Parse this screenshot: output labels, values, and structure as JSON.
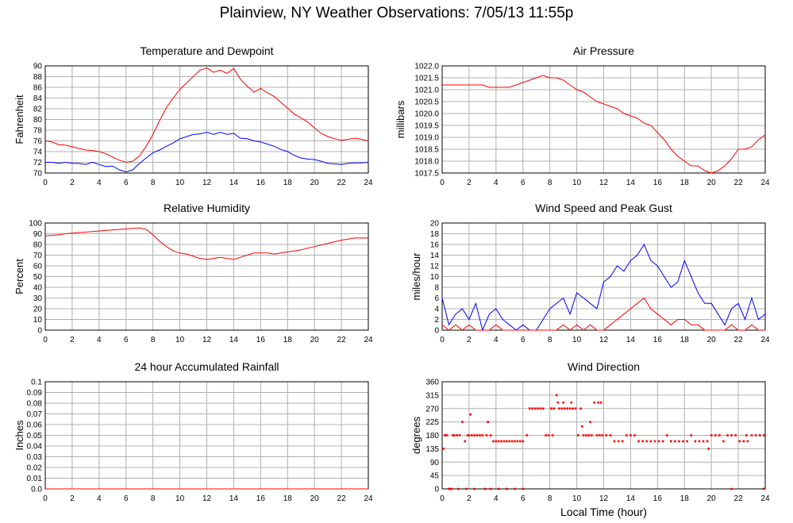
{
  "page": {
    "title": "Plainview, NY Weather Observations: 7/05/13 11:55p"
  },
  "colors": {
    "red": "#ff0000",
    "blue": "#0000ff",
    "grid": "#b0b0b0"
  },
  "chart_data": [
    {
      "id": "temp",
      "type": "line",
      "title": "Temperature and Dewpoint",
      "xlabel": "",
      "ylabel": "Fahrenheit",
      "xlim": [
        0,
        24
      ],
      "ylim": [
        70,
        90
      ],
      "x_ticks": [
        "0",
        "2",
        "4",
        "6",
        "8",
        "10",
        "12",
        "14",
        "16",
        "18",
        "20",
        "22",
        "24"
      ],
      "y_ticks": [
        "70",
        "72",
        "74",
        "76",
        "78",
        "80",
        "82",
        "84",
        "86",
        "88",
        "90"
      ],
      "series": [
        {
          "color": "#ff0000",
          "x": [
            0,
            0.5,
            1,
            1.5,
            2,
            2.5,
            3,
            3.5,
            4,
            4.5,
            5,
            5.5,
            6,
            6.5,
            7,
            7.5,
            8,
            8.5,
            9,
            9.5,
            10,
            10.5,
            11,
            11.5,
            12,
            12.5,
            13,
            13.5,
            14,
            14.5,
            15,
            15.5,
            16,
            16.5,
            17,
            17.5,
            18,
            18.5,
            19,
            19.5,
            20,
            20.5,
            21,
            21.5,
            22,
            22.5,
            23,
            23.5,
            24
          ],
          "y": [
            76,
            75.8,
            75.3,
            75.2,
            74.9,
            74.6,
            74.3,
            74.2,
            74,
            73.6,
            73,
            72.4,
            72,
            72.2,
            73.2,
            75,
            77.2,
            79.8,
            82.2,
            84,
            85.6,
            86.8,
            88,
            89.2,
            89.6,
            88.8,
            89.2,
            88.6,
            89.5,
            87.5,
            86.2,
            85.1,
            85.8,
            85,
            84.3,
            83.2,
            82.1,
            81,
            80.3,
            79.5,
            78.4,
            77.4,
            76.8,
            76.4,
            76.1,
            76.3,
            76.5,
            76.3,
            76
          ]
        },
        {
          "color": "#0000ff",
          "x": [
            0,
            0.5,
            1,
            1.5,
            2,
            2.5,
            3,
            3.5,
            4,
            4.5,
            5,
            5.5,
            6,
            6.5,
            7,
            7.5,
            8,
            8.5,
            9,
            9.5,
            10,
            10.5,
            11,
            11.5,
            12,
            12.5,
            13,
            13.5,
            14,
            14.5,
            15,
            15.5,
            16,
            16.5,
            17,
            17.5,
            18,
            18.5,
            19,
            19.5,
            20,
            20.5,
            21,
            21.5,
            22,
            22.5,
            23,
            23.5,
            24
          ],
          "y": [
            72,
            72,
            71.8,
            72,
            71.8,
            71.8,
            71.6,
            72,
            71.6,
            71.2,
            71.3,
            70.6,
            70.2,
            70.6,
            71.8,
            72.8,
            73.8,
            74.3,
            75,
            75.6,
            76.4,
            76.8,
            77.2,
            77.3,
            77.6,
            77.2,
            77.6,
            77.2,
            77.4,
            76.5,
            76.4,
            76,
            75.8,
            75.4,
            75,
            74.4,
            74,
            73.3,
            72.8,
            72.6,
            72.5,
            72.2,
            71.8,
            71.7,
            71.6,
            71.8,
            71.9,
            71.9,
            72
          ]
        }
      ]
    },
    {
      "id": "pressure",
      "type": "line",
      "title": "Air Pressure",
      "xlabel": "",
      "ylabel": "millibars",
      "xlim": [
        0,
        24
      ],
      "ylim": [
        1017.5,
        1022.0
      ],
      "x_ticks": [
        "0",
        "2",
        "4",
        "6",
        "8",
        "10",
        "12",
        "14",
        "16",
        "18",
        "20",
        "22",
        "24"
      ],
      "y_ticks": [
        "1017.5",
        "1018.0",
        "1018.5",
        "1019.0",
        "1019.5",
        "1020.0",
        "1020.5",
        "1021.0",
        "1021.5",
        "1022.0"
      ],
      "series": [
        {
          "color": "#ff0000",
          "x": [
            0,
            0.5,
            1,
            1.5,
            2,
            2.5,
            3,
            3.5,
            4,
            4.5,
            5,
            5.5,
            6,
            6.5,
            7,
            7.5,
            8,
            8.5,
            9,
            9.5,
            10,
            10.5,
            11,
            11.5,
            12,
            12.5,
            13,
            13.5,
            14,
            14.5,
            15,
            15.5,
            16,
            16.5,
            17,
            17.5,
            18,
            18.5,
            19,
            19.5,
            20,
            20.5,
            21,
            21.5,
            22,
            22.5,
            23,
            23.5,
            24
          ],
          "y": [
            1021.2,
            1021.2,
            1021.2,
            1021.2,
            1021.2,
            1021.2,
            1021.2,
            1021.1,
            1021.1,
            1021.1,
            1021.1,
            1021.2,
            1021.3,
            1021.4,
            1021.5,
            1021.6,
            1021.5,
            1021.5,
            1021.4,
            1021.2,
            1021.0,
            1020.9,
            1020.7,
            1020.5,
            1020.4,
            1020.3,
            1020.2,
            1020.0,
            1019.9,
            1019.8,
            1019.6,
            1019.5,
            1019.2,
            1018.9,
            1018.5,
            1018.2,
            1018.0,
            1017.8,
            1017.8,
            1017.6,
            1017.5,
            1017.6,
            1017.8,
            1018.1,
            1018.5,
            1018.5,
            1018.6,
            1018.9,
            1019.1
          ]
        }
      ]
    },
    {
      "id": "humidity",
      "type": "line",
      "title": "Relative Humidity",
      "xlabel": "",
      "ylabel": "Percent",
      "xlim": [
        0,
        24
      ],
      "ylim": [
        0,
        100
      ],
      "x_ticks": [
        "0",
        "2",
        "4",
        "6",
        "8",
        "10",
        "12",
        "14",
        "16",
        "18",
        "20",
        "22",
        "24"
      ],
      "y_ticks": [
        "0",
        "10",
        "20",
        "30",
        "40",
        "50",
        "60",
        "70",
        "80",
        "90",
        "100"
      ],
      "series": [
        {
          "color": "#ff0000",
          "x": [
            0,
            0.5,
            1,
            1.5,
            2,
            2.5,
            3,
            3.5,
            4,
            4.5,
            5,
            5.5,
            6,
            6.5,
            7,
            7.5,
            8,
            8.5,
            9,
            9.5,
            10,
            10.5,
            11,
            11.5,
            12,
            12.5,
            13,
            13.5,
            14,
            14.5,
            15,
            15.5,
            16,
            16.5,
            17,
            17.5,
            18,
            18.5,
            19,
            19.5,
            20,
            20.5,
            21,
            21.5,
            22,
            22.5,
            23,
            23.5,
            24
          ],
          "y": [
            88,
            88.5,
            89,
            90,
            90.5,
            91,
            91.5,
            92,
            92.5,
            93,
            93.5,
            94,
            94.5,
            95,
            95.5,
            94,
            89,
            83,
            78,
            74,
            72,
            71,
            69,
            67,
            66,
            67,
            68,
            67,
            66,
            68,
            70,
            72,
            72,
            72,
            71,
            72,
            73,
            74,
            75,
            76.5,
            78,
            79.5,
            81,
            82.5,
            84,
            85,
            86,
            86,
            86
          ]
        }
      ]
    },
    {
      "id": "wind",
      "type": "line",
      "title": "Wind Speed and Peak Gust",
      "xlabel": "",
      "ylabel": "miles/hour",
      "xlim": [
        0,
        24
      ],
      "ylim": [
        0,
        20
      ],
      "x_ticks": [
        "0",
        "2",
        "4",
        "6",
        "8",
        "10",
        "12",
        "14",
        "16",
        "18",
        "20",
        "22",
        "24"
      ],
      "y_ticks": [
        "0",
        "2",
        "4",
        "6",
        "8",
        "10",
        "12",
        "14",
        "16",
        "18",
        "20"
      ],
      "series": [
        {
          "color": "#0000ff",
          "x": [
            0,
            0.5,
            1,
            1.5,
            2,
            2.5,
            3,
            3.5,
            4,
            4.5,
            5,
            5.5,
            6,
            6.5,
            7,
            7.5,
            8,
            8.5,
            9,
            9.5,
            10,
            10.5,
            11,
            11.5,
            12,
            12.5,
            13,
            13.5,
            14,
            14.5,
            15,
            15.5,
            16,
            16.5,
            17,
            17.5,
            18,
            18.5,
            19,
            19.5,
            20,
            20.5,
            21,
            21.5,
            22,
            22.5,
            23,
            23.5,
            24
          ],
          "y": [
            6,
            1,
            3,
            4,
            2,
            5,
            0,
            3,
            4,
            2,
            1,
            0,
            1,
            0,
            0,
            2,
            4,
            5,
            6,
            3,
            7,
            6,
            5,
            4,
            9,
            10,
            12,
            11,
            13,
            14,
            16,
            13,
            12,
            10,
            8,
            9,
            13,
            10,
            7,
            5,
            5,
            3,
            1,
            4,
            5,
            2,
            6,
            2,
            3
          ]
        },
        {
          "color": "#ff0000",
          "x": [
            0,
            0.5,
            1,
            1.5,
            2,
            2.5,
            3,
            3.5,
            4,
            4.5,
            5,
            5.5,
            6,
            6.5,
            7,
            7.5,
            8,
            8.5,
            9,
            9.5,
            10,
            10.5,
            11,
            11.5,
            12,
            12.5,
            13,
            13.5,
            14,
            14.5,
            15,
            15.5,
            16,
            16.5,
            17,
            17.5,
            18,
            18.5,
            19,
            19.5,
            20,
            20.5,
            21,
            21.5,
            22,
            22.5,
            23,
            23.5,
            24
          ],
          "y": [
            1,
            0,
            1,
            0,
            1,
            0,
            0,
            0,
            1,
            0,
            0,
            0,
            0,
            0,
            0,
            0,
            0,
            0,
            1,
            0,
            1,
            0,
            1,
            0,
            0,
            1,
            2,
            3,
            4,
            5,
            6,
            4,
            3,
            2,
            1,
            2,
            2,
            1,
            1,
            0,
            0,
            0,
            0,
            1,
            0,
            0,
            1,
            0,
            0
          ]
        }
      ]
    },
    {
      "id": "rain",
      "type": "line",
      "title": "24 hour Accumulated Rainfall",
      "xlabel": "",
      "ylabel": "Inches",
      "xlim": [
        0,
        24
      ],
      "ylim": [
        0,
        0.1
      ],
      "x_ticks": [
        "0",
        "2",
        "4",
        "6",
        "8",
        "10",
        "12",
        "14",
        "16",
        "18",
        "20",
        "22",
        "24"
      ],
      "y_ticks": [
        "0.0",
        "0.01",
        "0.02",
        "0.03",
        "0.04",
        "0.05",
        "0.06",
        "0.07",
        "0.08",
        "0.09",
        "0.1"
      ],
      "series": [
        {
          "color": "#ff0000",
          "x": [
            0,
            24
          ],
          "y": [
            0,
            0
          ]
        }
      ]
    },
    {
      "id": "direction",
      "type": "scatter",
      "title": "Wind Direction",
      "xlabel": "Local Time (hour)",
      "ylabel": "degrees",
      "xlim": [
        0,
        24
      ],
      "ylim": [
        0,
        360
      ],
      "x_ticks": [
        "0",
        "2",
        "4",
        "6",
        "8",
        "10",
        "12",
        "14",
        "16",
        "18",
        "20",
        "22",
        "24"
      ],
      "y_ticks": [
        "0",
        "45",
        "90",
        "135",
        "180",
        "225",
        "270",
        "315",
        "360"
      ],
      "series": [
        {
          "color": "#ff0000",
          "x": [
            0.1,
            0.2,
            0.35,
            0.5,
            0.7,
            0.9,
            1.1,
            1.3,
            1.5,
            1.7,
            1.9,
            2.0,
            2.2,
            2.4,
            2.6,
            2.8,
            3.0,
            3.2,
            3.4,
            3.6,
            3.8,
            4.0,
            4.2,
            4.4,
            4.6,
            4.8,
            5.0,
            5.2,
            5.4,
            5.6,
            5.8,
            6.0,
            6.3,
            6.5,
            6.7,
            6.9,
            7.1,
            7.3,
            7.5,
            7.7,
            7.9,
            8.1,
            8.3,
            8.5,
            8.7,
            8.9,
            9.1,
            9.3,
            9.5,
            9.7,
            9.9,
            10.1,
            10.3,
            10.5,
            10.7,
            10.9,
            11.1,
            11.3,
            11.5,
            11.7,
            11.9,
            12.2,
            12.5,
            12.8,
            13.1,
            13.4,
            13.7,
            14.0,
            14.3,
            14.6,
            14.9,
            15.2,
            15.5,
            15.8,
            16.1,
            16.4,
            16.7,
            17.0,
            17.3,
            17.6,
            17.9,
            18.2,
            18.5,
            18.8,
            19.1,
            19.4,
            19.7,
            20.0,
            20.3,
            20.6,
            20.9,
            21.2,
            21.5,
            21.8,
            22.1,
            22.4,
            22.7,
            23.0,
            23.3,
            23.6,
            23.9,
            0.6,
            1.2,
            1.8,
            2.4,
            3.6,
            4.2,
            4.8,
            5.4,
            6.0,
            0.8,
            2.1,
            3.3,
            8.2,
            8.6,
            9.0,
            9.6,
            10.4,
            11.0,
            11.6,
            11.8,
            19.8,
            21.5,
            22.6,
            23.9
          ],
          "y": [
            135,
            180,
            180,
            0,
            0,
            180,
            180,
            180,
            225,
            160,
            180,
            180,
            180,
            180,
            180,
            180,
            180,
            0,
            225,
            180,
            160,
            160,
            160,
            160,
            160,
            160,
            160,
            160,
            160,
            160,
            160,
            160,
            180,
            270,
            270,
            270,
            270,
            270,
            270,
            180,
            180,
            270,
            270,
            315,
            270,
            270,
            270,
            270,
            270,
            270,
            270,
            180,
            270,
            180,
            180,
            180,
            180,
            290,
            180,
            180,
            180,
            180,
            180,
            160,
            160,
            160,
            180,
            180,
            180,
            160,
            160,
            160,
            160,
            160,
            160,
            160,
            180,
            160,
            160,
            160,
            160,
            160,
            180,
            160,
            160,
            160,
            160,
            180,
            180,
            180,
            160,
            180,
            180,
            180,
            160,
            160,
            160,
            180,
            180,
            180,
            180,
            0,
            0,
            0,
            0,
            0,
            0,
            0,
            0,
            0,
            180,
            250,
            180,
            180,
            290,
            290,
            290,
            210,
            225,
            290,
            290,
            135,
            0,
            180,
            0
          ]
        }
      ]
    }
  ]
}
